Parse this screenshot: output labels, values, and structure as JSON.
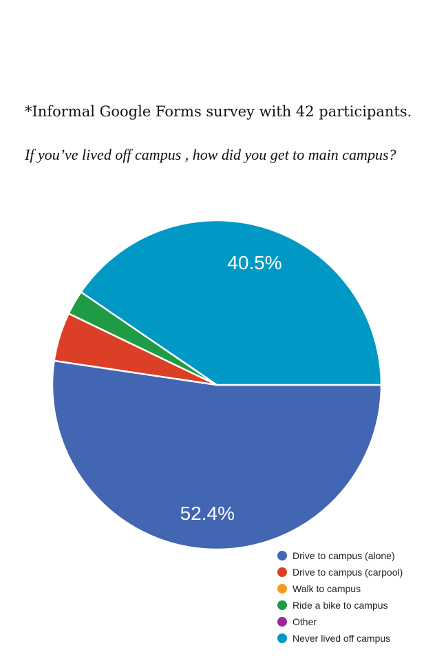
{
  "note": "*Informal Google Forms survey with 42 participants.",
  "question": "If  you’ve lived off  campus , how did you get to main campus?",
  "chart_data": {
    "type": "pie",
    "title": "",
    "slices": [
      {
        "label": "Drive to campus (alone)",
        "value": 52.4,
        "color": "#4366b3",
        "data_label": "52.4%"
      },
      {
        "label": "Drive to campus (carpool)",
        "value": 4.8,
        "color": "#db4027",
        "data_label": ""
      },
      {
        "label": "Walk to campus",
        "value": 0,
        "color": "#f59b1c",
        "data_label": ""
      },
      {
        "label": "Ride a bike to campus",
        "value": 2.4,
        "color": "#1f9a45",
        "data_label": ""
      },
      {
        "label": "Other",
        "value": 0,
        "color": "#9a2896",
        "data_label": ""
      },
      {
        "label": "Never lived off campus",
        "value": 40.5,
        "color": "#0099c6",
        "data_label": "40.5%"
      }
    ],
    "legend_position": "bottom-right"
  }
}
